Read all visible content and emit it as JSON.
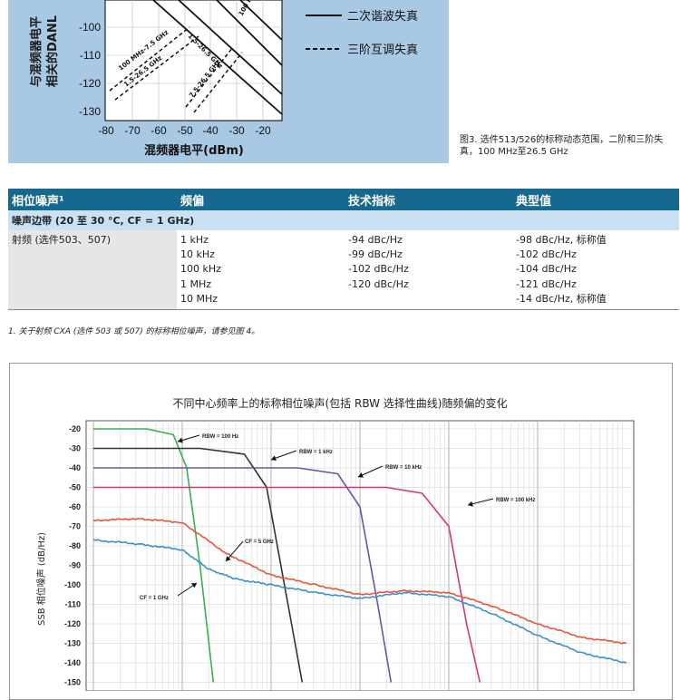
{
  "top_figure": {
    "ylabel_line1": "与混频器电平",
    "ylabel_line2": "相关的DANL",
    "yticks": [
      "-100",
      "-110",
      "-120",
      "-130"
    ],
    "xticks": [
      "-80",
      "-70",
      "-60",
      "-50",
      "-40",
      "-30",
      "-20"
    ],
    "xlabel": "混频器电平(dBm)",
    "legend": [
      {
        "label": "二次谐波失真",
        "style": "solid"
      },
      {
        "label": "三阶互调失真",
        "style": "dashed"
      }
    ],
    "line_labels": [
      "100 MHz-7.5 GHz",
      "1.5-26.5 GHz",
      "7.5-26.5 GHz",
      "1.5-26.5 GHz",
      "100 MHz"
    ],
    "colors": {
      "background": "#a9c8e4",
      "plot": "#ffffff"
    }
  },
  "top_caption": "图3. 选件513/526的标称动态范围，二阶和三阶失真，100 MHz至26.5 GHz",
  "table": {
    "headers": [
      "相位噪声¹",
      "频偏",
      "技术指标",
      "典型值"
    ],
    "subheader": "噪声边带 (20 至 30 °C, CF = 1 GHz)",
    "row_label": "射频 (选件503、507)",
    "offsets": [
      "1 kHz",
      "10 kHz",
      "100 kHz",
      "1 MHz",
      "10 MHz"
    ],
    "specs": [
      "-94 dBc/Hz",
      "-99 dBc/Hz",
      "-102 dBc/Hz",
      "-120 dBc/Hz",
      ""
    ],
    "typicals": [
      "-98 dBc/Hz, 标称值",
      "-102 dBc/Hz",
      "-104 dBc/Hz",
      "-121 dBc/Hz",
      "-14 dBc/Hz, 标称值"
    ],
    "colors": {
      "header": "#17688f",
      "subheader": "#c9e1f2"
    }
  },
  "footnote": "1. 关于射频 CXA (选件 503 或 507) 的标称相位噪声，请参见图 4。",
  "bottom_chart": {
    "title": "不同中心频率上的标称相位噪声(包括 RBW 选择性曲线)随频偏的变化",
    "ylabel": "SSB 相位噪声 (dB/Hz)",
    "yticks": [
      "-20",
      "-30",
      "-40",
      "-50",
      "-60",
      "-70",
      "-80",
      "-90",
      "-100",
      "-110",
      "-120",
      "-130",
      "-140",
      "-150"
    ],
    "annotations": [
      "RBW = 100 Hz",
      "RBW = 1 kHz",
      "RBW = 10 kHz",
      "RBW = 100 kHz",
      "CF = 5 GHz",
      "CF = 1 GHz"
    ],
    "colors": {
      "rbw100hz": "#35b34a",
      "rbw1k": "#333333",
      "rbw10k": "#5a5aa8",
      "rbw100k": "#d4357a",
      "cf5": "#e8533a",
      "cf1": "#3b8fce"
    }
  },
  "chart_data": {
    "type": "line",
    "title": "不同中心频率上的标称相位噪声(包括 RBW 选择性曲线)随频偏的变化",
    "ylabel": "SSB 相位噪声 (dB/Hz)",
    "xlabel": "",
    "ylim": [
      -150,
      -20
    ],
    "x_decades": [
      0,
      1,
      2,
      3,
      4,
      5,
      6
    ],
    "series": [
      {
        "name": "RBW = 100 Hz",
        "x": [
          0,
          0.6,
          0.9,
          1.05,
          1.2,
          1.35
        ],
        "y": [
          -20,
          -20,
          -23,
          -40,
          -90,
          -150
        ]
      },
      {
        "name": "RBW = 1 kHz",
        "x": [
          0,
          1.2,
          1.7,
          1.95,
          2.15,
          2.35
        ],
        "y": [
          -30,
          -30,
          -33,
          -50,
          -100,
          -150
        ]
      },
      {
        "name": "RBW = 10 kHz",
        "x": [
          0,
          2.3,
          2.75,
          3.0,
          3.2,
          3.35
        ],
        "y": [
          -40,
          -40,
          -43,
          -60,
          -110,
          -150
        ]
      },
      {
        "name": "RBW = 100 kHz",
        "x": [
          0,
          3.3,
          3.7,
          4.0,
          4.2,
          4.35
        ],
        "y": [
          -50,
          -50,
          -53,
          -70,
          -120,
          -150
        ]
      },
      {
        "name": "CF = 5 GHz",
        "x": [
          0,
          0.5,
          1.0,
          1.5,
          2.0,
          2.5,
          3.0,
          3.5,
          4.0,
          4.5,
          5.0,
          5.5,
          6.0
        ],
        "y": [
          -67,
          -66,
          -68,
          -84,
          -95,
          -100,
          -105,
          -103,
          -104,
          -111,
          -120,
          -127,
          -130
        ]
      },
      {
        "name": "CF = 1 GHz",
        "x": [
          0,
          0.5,
          1.0,
          1.3,
          1.6,
          2.0,
          2.5,
          3.0,
          3.5,
          4.0,
          4.5,
          5.0,
          5.5,
          6.0
        ],
        "y": [
          -77,
          -79,
          -82,
          -92,
          -97,
          -100,
          -104,
          -107,
          -104,
          -106,
          -115,
          -126,
          -135,
          -140
        ]
      }
    ]
  }
}
